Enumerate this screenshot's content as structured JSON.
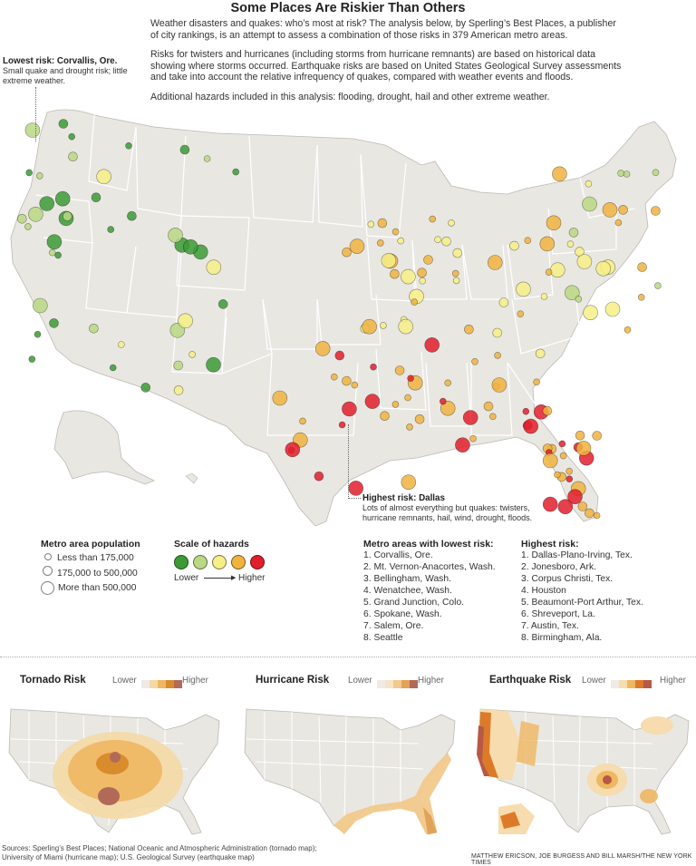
{
  "title": "Some Places Are Riskier Than Others",
  "intro": [
    "Weather disasters and quakes: who’s most at risk? The analysis below, by Sperling’s Best Places, a publisher of city rankings, is an attempt to assess a combination of those risks in 379 American metro areas.",
    "Risks for twisters and hurricanes (including storms from hurricane remnants) are based on historical data showing where storms occurred. Earthquake risks are based on United States Geological Survey assessments and take into account the relative infrequency of quakes, compared with weather events and floods.",
    "Additional hazards included in this analysis: flooding, drought, hail and other extreme weather."
  ],
  "annotations": {
    "lowest": {
      "heading": "Lowest risk: Corvallis, Ore.",
      "text": "Small quake and drought risk; little extreme weather."
    },
    "highest": {
      "heading": "Highest risk: Dallas",
      "text": "Lots of almost everything but quakes: twisters, hurricane remnants, hail, wind, drought, floods."
    }
  },
  "population_legend": {
    "title": "Metro area population",
    "items": [
      "Less than 175,000",
      "175,000 to 500,000",
      "More than 500,000"
    ]
  },
  "hazard_scale": {
    "title": "Scale of hazards",
    "low_label": "Lower",
    "high_label": "Higher",
    "colors": [
      "#3c9a35",
      "#b8d883",
      "#f6ef86",
      "#f0b340",
      "#e01e2c"
    ]
  },
  "lowest_risk": {
    "title": "Metro areas with lowest risk:",
    "items": [
      "1. Corvallis, Ore.",
      "2. Mt. Vernon-Anacortes, Wash.",
      "3. Bellingham, Wash.",
      "4. Wenatchee, Wash.",
      "5. Grand Junction, Colo.",
      "6. Spokane, Wash.",
      "7. Salem, Ore.",
      "8. Seattle"
    ]
  },
  "highest_risk": {
    "title": "Highest risk:",
    "items": [
      "1. Dallas-Plano-Irving, Tex.",
      "2. Jonesboro, Ark.",
      "3. Corpus Christi, Tex.",
      "4. Houston",
      "5. Beaumont-Port Arthur, Tex.",
      "6. Shreveport, La.",
      "7. Austin, Tex.",
      "8. Birmingham, Ala."
    ]
  },
  "small_maps": [
    {
      "title": "Tornado Risk",
      "lower": "Lower",
      "higher": "Higher",
      "colors": [
        "#efebe4",
        "#f4d9a6",
        "#eeb762",
        "#d98c2c",
        "#b26a58"
      ]
    },
    {
      "title": "Hurricane Risk",
      "lower": "Lower",
      "higher": "Higher",
      "colors": [
        "#efebe4",
        "#f7e3c6",
        "#f2c98c",
        "#e3a25a",
        "#b26a58"
      ]
    },
    {
      "title": "Earthquake Risk",
      "lower": "Lower",
      "higher": "Higher",
      "colors": [
        "#efebe4",
        "#f6dcae",
        "#eeb762",
        "#dd7a2a",
        "#b85846"
      ]
    }
  ],
  "sources": [
    "Sources: Sperling’s Best Places; National Oceanic and Atmospheric Administration (tornado map);",
    "University of Miami (hurricane map); U.S. Geological Survey (earthquake map)"
  ],
  "credit": "MATTHEW ERICSON, JOE BURGESS AND BILL MARSH/THE NEW YORK TIMES"
}
